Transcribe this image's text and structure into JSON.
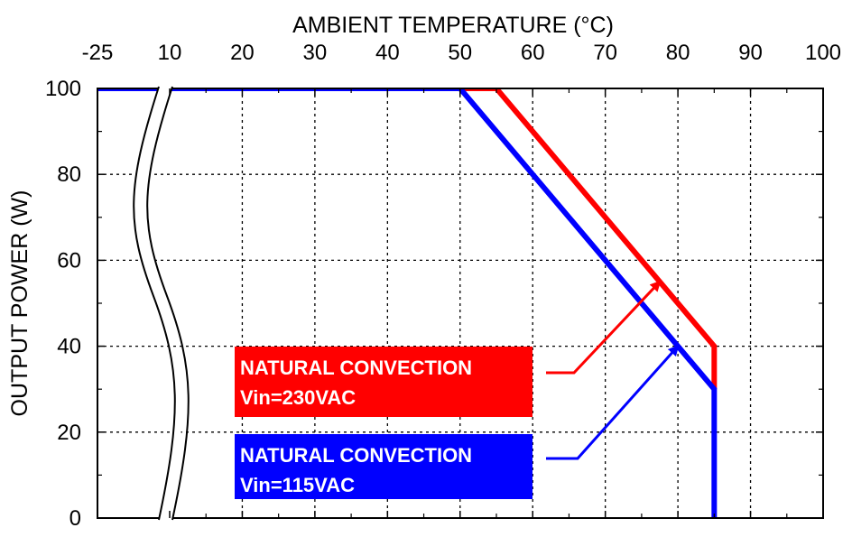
{
  "chart_data": {
    "type": "line",
    "title": "",
    "xlabel": "AMBIENT TEMPERATURE (°C)",
    "ylabel": "OUTPUT POWER (W)",
    "x_ticks": [
      "-25",
      "10",
      "20",
      "30",
      "40",
      "50",
      "60",
      "70",
      "80",
      "90",
      "100"
    ],
    "x_tick_values": [
      -25,
      10,
      20,
      30,
      40,
      50,
      60,
      70,
      80,
      90,
      100
    ],
    "y_ticks": [
      "0",
      "20",
      "40",
      "60",
      "80",
      "100"
    ],
    "y_tick_values": [
      0,
      20,
      40,
      60,
      80,
      100
    ],
    "xlim": [
      -25,
      100
    ],
    "ylim": [
      0,
      100
    ],
    "axis_break_between": [
      -25,
      10
    ],
    "grid": true,
    "series": [
      {
        "name": "NATURAL CONVECTION Vin=230VAC",
        "label_line1": "NATURAL CONVECTION",
        "label_line2": "Vin=230VAC",
        "color": "#ff0000",
        "x": [
          -25,
          55,
          85,
          85
        ],
        "y": [
          100,
          100,
          40,
          30
        ],
        "annotation_point": [
          77.5,
          55
        ]
      },
      {
        "name": "NATURAL CONVECTION Vin=115VAC",
        "label_line1": "NATURAL CONVECTION",
        "label_line2": "Vin=115VAC",
        "color": "#0000ff",
        "x": [
          -25,
          50,
          85,
          85
        ],
        "y": [
          100,
          100,
          30,
          0
        ],
        "annotation_point": [
          80,
          40
        ]
      }
    ]
  }
}
